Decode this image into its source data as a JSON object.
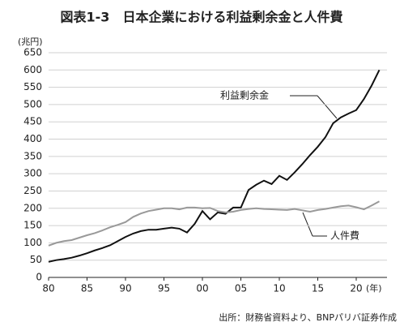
{
  "chart_data": {
    "type": "line",
    "title": "図表1-3　日本企業における利益剰余金と人件費",
    "y_label": "(兆円)",
    "x_unit": "(年)",
    "source": "出所：財務省資料より、BNPパリバ証券作成",
    "x": [
      1980,
      1981,
      1982,
      1983,
      1984,
      1985,
      1986,
      1987,
      1988,
      1989,
      1990,
      1991,
      1992,
      1993,
      1994,
      1995,
      1996,
      1997,
      1998,
      1999,
      2000,
      2001,
      2002,
      2003,
      2004,
      2005,
      2006,
      2007,
      2008,
      2009,
      2010,
      2011,
      2012,
      2013,
      2014,
      2015,
      2016,
      2017,
      2018,
      2019,
      2020,
      2021,
      2022,
      2023
    ],
    "series": [
      {
        "name": "利益剰余金",
        "color": "#111111",
        "values": [
          45,
          50,
          53,
          57,
          63,
          70,
          78,
          85,
          93,
          105,
          117,
          127,
          134,
          138,
          138,
          141,
          144,
          141,
          130,
          155,
          192,
          168,
          188,
          184,
          202,
          202,
          253,
          268,
          280,
          270,
          294,
          282,
          304,
          328,
          354,
          378,
          406,
          446,
          463,
          474,
          484,
          516,
          555,
          600
        ]
      },
      {
        "name": "人件費",
        "color": "#999999",
        "values": [
          92,
          100,
          105,
          108,
          115,
          122,
          128,
          136,
          145,
          152,
          160,
          175,
          185,
          192,
          196,
          200,
          200,
          197,
          202,
          202,
          200,
          201,
          192,
          188,
          190,
          195,
          198,
          200,
          198,
          197,
          196,
          195,
          198,
          194,
          190,
          195,
          198,
          202,
          206,
          208,
          203,
          197,
          208,
          220
        ]
      }
    ],
    "xlim": [
      1980,
      2024
    ],
    "xticks": [
      {
        "value": 1980,
        "label": "80"
      },
      {
        "value": 1985,
        "label": "85"
      },
      {
        "value": 1990,
        "label": "90"
      },
      {
        "value": 1995,
        "label": "95"
      },
      {
        "value": 2000,
        "label": "00"
      },
      {
        "value": 2005,
        "label": "05"
      },
      {
        "value": 2010,
        "label": "10"
      },
      {
        "value": 2015,
        "label": "15"
      },
      {
        "value": 2020,
        "label": "20"
      }
    ],
    "ylim": [
      0,
      650
    ],
    "yticks": [
      0,
      50,
      100,
      150,
      200,
      250,
      300,
      350,
      400,
      450,
      500,
      550,
      600,
      650
    ],
    "grid": true
  }
}
